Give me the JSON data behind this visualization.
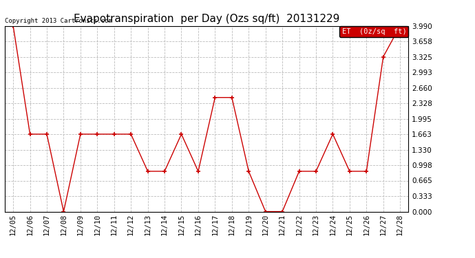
{
  "title": "Evapotranspiration  per Day (Ozs sq/ft)  20131229",
  "copyright": "Copyright 2013 Cartronics.com",
  "legend_label": "ET  (0z/sq  ft)",
  "dates": [
    "12/05",
    "12/06",
    "12/07",
    "12/08",
    "12/09",
    "12/10",
    "12/11",
    "12/12",
    "12/13",
    "12/14",
    "12/15",
    "12/16",
    "12/17",
    "12/18",
    "12/19",
    "12/20",
    "12/21",
    "12/22",
    "12/23",
    "12/24",
    "12/25",
    "12/26",
    "12/27",
    "12/28"
  ],
  "values": [
    3.99,
    1.663,
    1.663,
    0.0,
    1.663,
    1.663,
    1.663,
    1.663,
    0.865,
    0.865,
    1.663,
    0.865,
    2.45,
    2.45,
    0.865,
    0.0,
    0.0,
    0.865,
    0.865,
    1.663,
    0.865,
    0.865,
    3.325,
    3.99
  ],
  "ylim": [
    0.0,
    3.99
  ],
  "yticks": [
    0.0,
    0.333,
    0.665,
    0.998,
    1.33,
    1.663,
    1.995,
    2.328,
    2.66,
    2.993,
    3.325,
    3.658,
    3.99
  ],
  "line_color": "#cc0000",
  "marker": "+",
  "marker_size": 5,
  "marker_linewidth": 1.2,
  "bg_color": "#ffffff",
  "grid_color": "#bbbbbb",
  "title_fontsize": 11,
  "tick_fontsize": 7.5,
  "copyright_fontsize": 6.5,
  "legend_bg": "#cc0000",
  "legend_text_color": "#ffffff",
  "legend_fontsize": 7.5
}
